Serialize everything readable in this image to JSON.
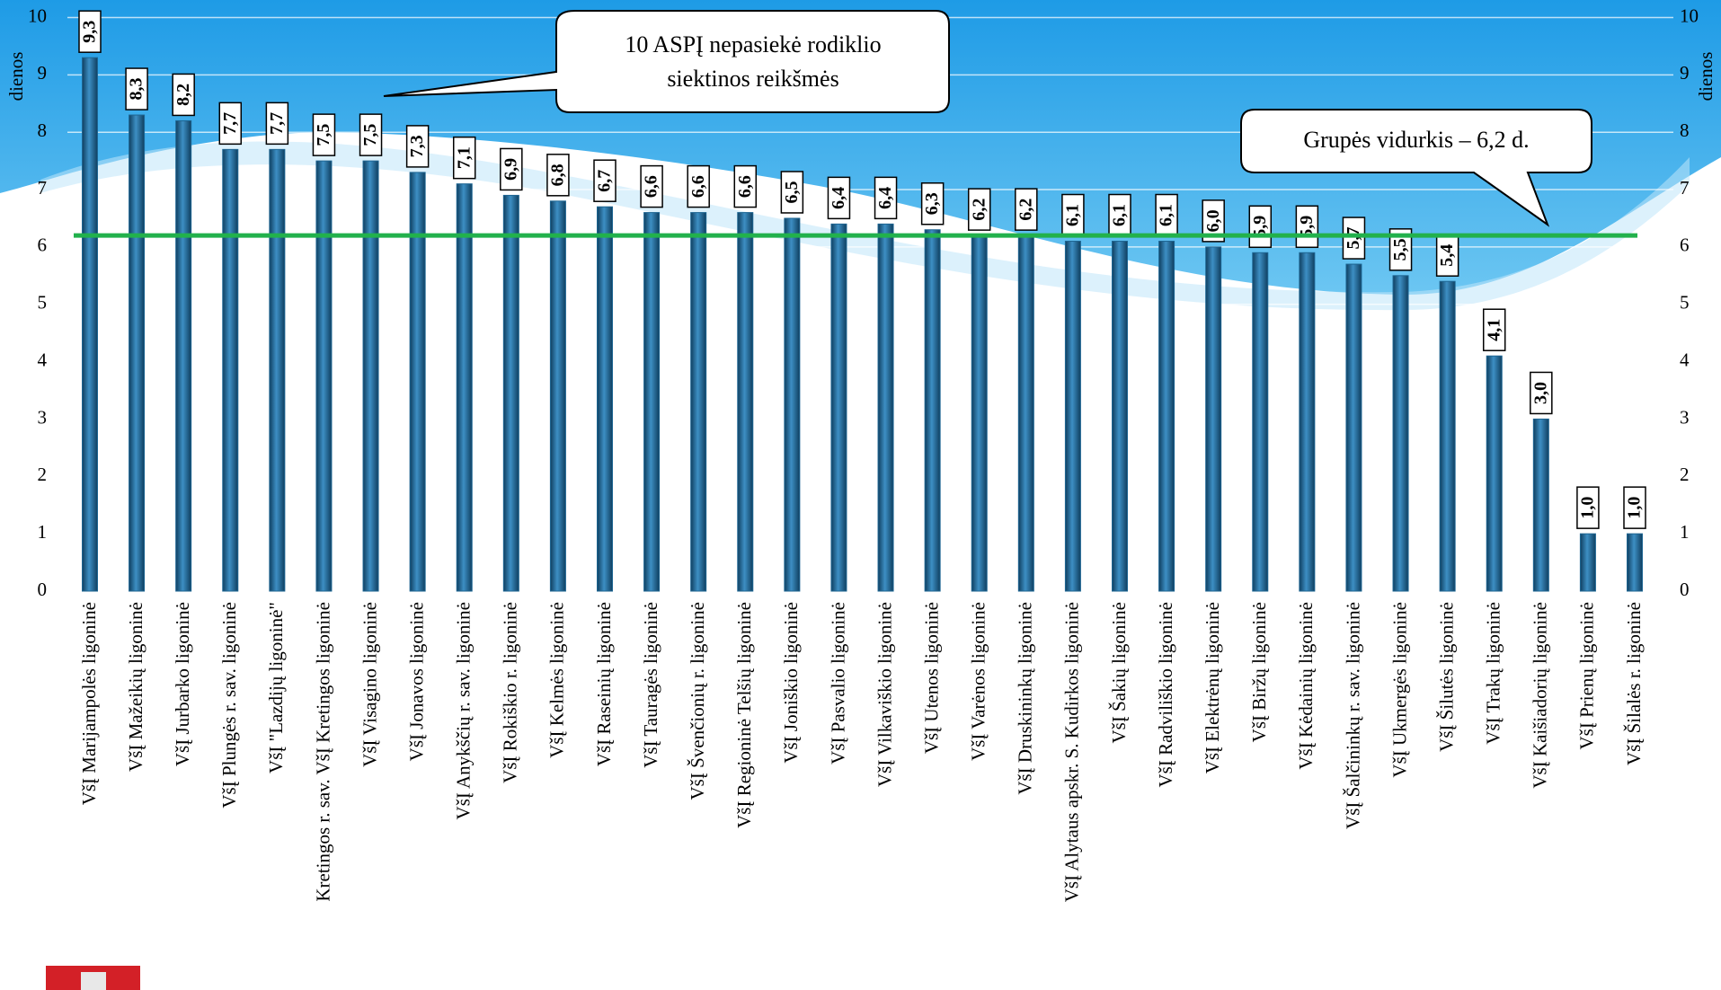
{
  "chart_data": {
    "type": "bar",
    "y_label": "dienos",
    "y2_label": "dienos",
    "categories": [
      "VšĮ Marijampolės ligoninė",
      "VšĮ Mažeikių ligoninė",
      "VšĮ Jurbarko ligoninė",
      "VšĮ Plungės r. sav. ligoninė",
      "VšĮ \"Lazdijų ligoninė\"",
      "Kretingos r. sav. VšĮ Kretingos ligoninė",
      "VšĮ Visagino ligoninė",
      "VšĮ Jonavos ligoninė",
      "VšĮ Anykščių r. sav. ligoninė",
      "VšĮ Rokiškio r. ligoninė",
      "VšĮ Kelmės ligoninė",
      "VšĮ Raseinių ligoninė",
      "VšĮ Tauragės ligoninė",
      "VšĮ Švenčionių r. ligoninė",
      "VšĮ Regioninė Telšių ligoninė",
      "VšĮ Joniškio ligoninė",
      "VšĮ Pasvalio ligoninė",
      "VšĮ Vilkaviškio ligoninė",
      "VšĮ Utenos ligoninė",
      "VšĮ Varėnos ligoninė",
      "VšĮ Druskininkų ligoninė",
      "VšĮ Alytaus apskr. S. Kudirkos ligoninė",
      "VšĮ Šakių ligoninė",
      "VšĮ Radviliškio ligoninė",
      "VšĮ Elektrėnų ligoninė",
      "VšĮ Biržų ligoninė",
      "VšĮ Kėdainių ligoninė",
      "VšĮ Šalčininkų r. sav. ligoninė",
      "VšĮ Ukmergės ligoninė",
      "VšĮ Šilutės ligoninė",
      "VšĮ Trakų ligoninė",
      "VšĮ Kaišiadorių ligoninė",
      "VšĮ Prienų ligoninė",
      "VšĮ Šilalės r. ligoninė"
    ],
    "values": [
      9.3,
      8.3,
      8.2,
      7.7,
      7.7,
      7.5,
      7.5,
      7.3,
      7.1,
      6.9,
      6.8,
      6.7,
      6.6,
      6.6,
      6.6,
      6.5,
      6.4,
      6.4,
      6.3,
      6.2,
      6.2,
      6.1,
      6.1,
      6.1,
      6.0,
      5.9,
      5.9,
      5.7,
      5.5,
      5.4,
      4.1,
      3.0,
      1.0,
      1.0
    ],
    "value_labels": [
      "9,3",
      "8,3",
      "8,2",
      "7,7",
      "7,7",
      "7,5",
      "7,5",
      "7,3",
      "7,1",
      "6,9",
      "6,8",
      "6,7",
      "6,6",
      "6,6",
      "6,6",
      "6,5",
      "6,4",
      "6,4",
      "6,3",
      "6,2",
      "6,2",
      "6,1",
      "6,1",
      "6,1",
      "6,0",
      "5,9",
      "5,9",
      "5,7",
      "5,5",
      "5,4",
      "4,1",
      "3,0",
      "1,0",
      "1,0"
    ],
    "value_label_colors": [
      "#ff0000",
      "#ff0000",
      "#ff0000",
      "#ff0000",
      "#ff0000",
      "#ff0000",
      "#ff0000",
      "#ff0000",
      "#ff0000",
      "#ff0000",
      "#000000",
      "#000000",
      "#000000",
      "#000000",
      "#000000",
      "#000000",
      "#000000",
      "#000000",
      "#000000",
      "#000000",
      "#000000",
      "#000000",
      "#000000",
      "#000000",
      "#000000",
      "#000000",
      "#000000",
      "#000000",
      "#000000",
      "#000000",
      "#000000",
      "#000000",
      "#000000",
      "#000000"
    ],
    "color": "#1d6592",
    "ylim": [
      0,
      10
    ],
    "yticks": [
      0,
      1,
      2,
      3,
      4,
      5,
      6,
      7,
      8,
      9,
      10
    ],
    "y2lim": [
      0,
      10
    ],
    "y2ticks": [
      0,
      1,
      2,
      3,
      4,
      5,
      6,
      7,
      8,
      9,
      10
    ],
    "grid": true,
    "reference_line": {
      "value": 6.2,
      "color": "#22b14c"
    },
    "annotations": [
      {
        "lines": [
          "10 ASPĮ nepasiekė rodiklio",
          "siektinos reikšmės"
        ]
      },
      {
        "lines": [
          "Grupės vidurkis – 6,2 d."
        ]
      }
    ]
  }
}
